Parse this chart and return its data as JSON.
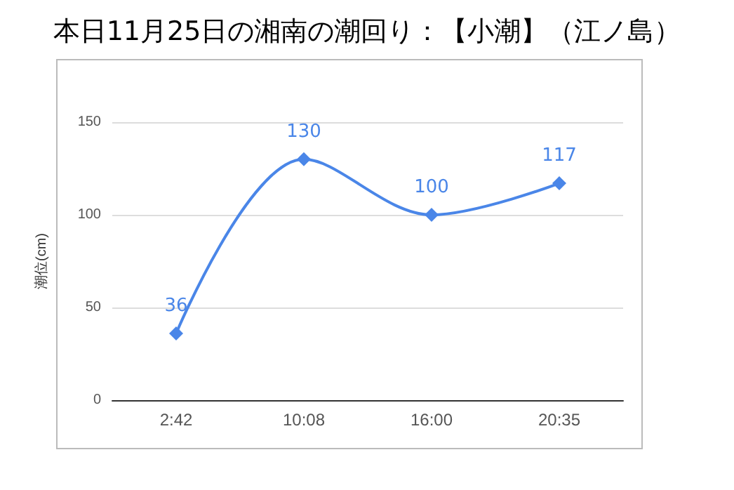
{
  "chart_data": {
    "type": "line",
    "title": "本日11月25日の湘南の潮回り：【小潮】（江ノ島）",
    "ylabel": "潮位(cm)",
    "categories": [
      "2:42",
      "10:08",
      "16:00",
      "20:35"
    ],
    "series": [
      {
        "color": "#4a86e8",
        "values": [
          36,
          130,
          100,
          117
        ]
      }
    ],
    "ylim": [
      0,
      150
    ],
    "yticks": [
      0,
      50,
      100,
      150
    ],
    "grid": "y",
    "marker": "diamond",
    "data_labels": true
  }
}
